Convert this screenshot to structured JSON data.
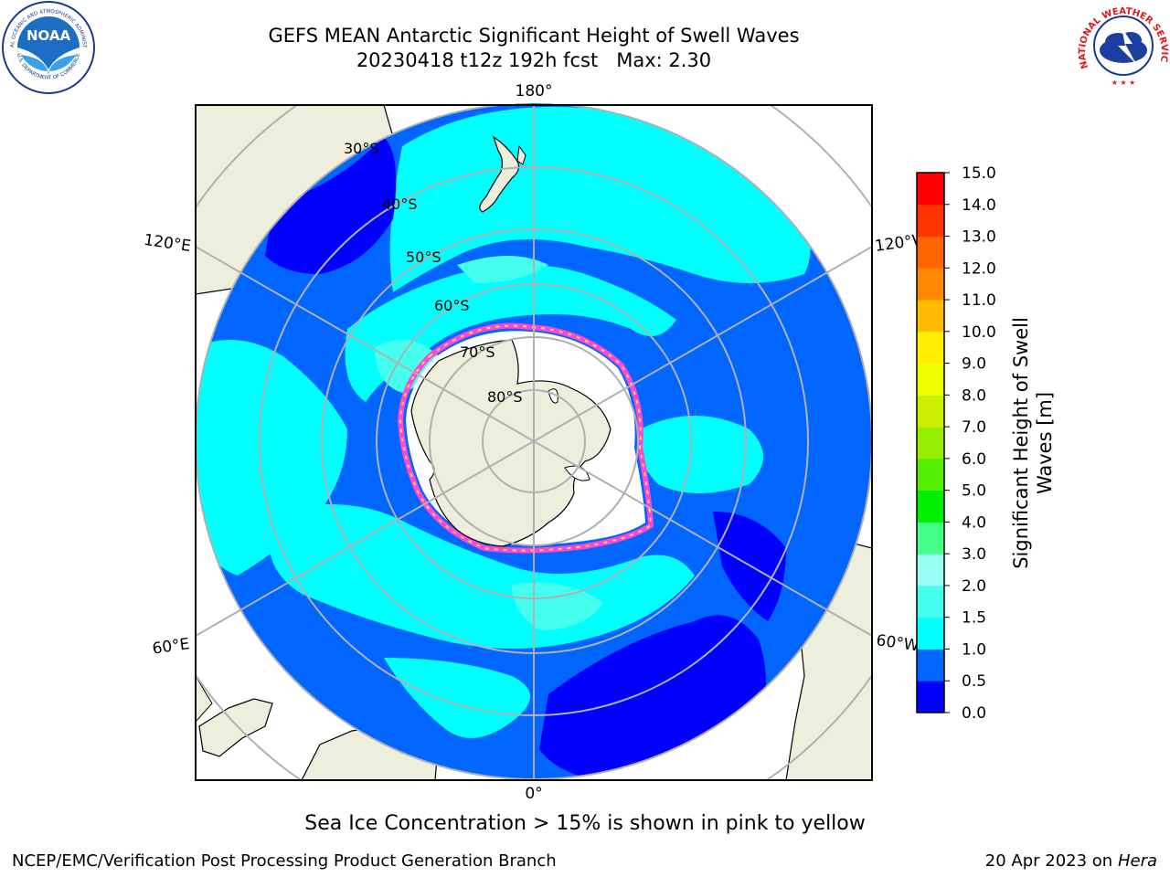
{
  "header": {
    "title_line1": "GEFS MEAN Antarctic Significant Height of Swell Waves",
    "title_line2": "20230418 t12z 192h fcst   Max: 2.30"
  },
  "logos": {
    "noaa_text": "NOAA",
    "noaa_ring_top": "NATIONAL OCEANIC AND ATMOSPHERIC ADMINISTRATION",
    "noaa_ring_bottom": "U.S. DEPARTMENT OF COMMERCE",
    "nws_ring": "NATIONAL WEATHER SERVICE"
  },
  "map": {
    "projection": "south-polar-stereographic",
    "longitude_labels": {
      "top": "180°",
      "bottom": "0°",
      "upper_left": "120°E",
      "upper_right": "120°W",
      "lower_left": "60°E",
      "lower_right": "60°W"
    },
    "latitude_labels": [
      "30°S",
      "40°S",
      "50°S",
      "60°S",
      "70°S",
      "80°S"
    ],
    "colors": {
      "land": "#eeeedc",
      "sea_ice": "#ffffff",
      "ice_edge_pink": "#ff44dd",
      "ice_edge_yellow": "#ffe030",
      "grid": "#b0b0b0"
    }
  },
  "colorbar": {
    "label_line1": "Significant Height of Swell",
    "label_line2": "Waves [m]",
    "ticks": [
      "0.0",
      "0.5",
      "1.0",
      "1.5",
      "2.0",
      "3.0",
      "4.0",
      "5.0",
      "6.0",
      "7.0",
      "8.0",
      "9.0",
      "10.0",
      "11.0",
      "12.0",
      "13.0",
      "14.0",
      "15.0"
    ],
    "colors": [
      "#0000ff",
      "#0066ff",
      "#00ffff",
      "#44ffee",
      "#99fff5",
      "#44ff88",
      "#00ee00",
      "#55ee00",
      "#99ee00",
      "#ccee00",
      "#eeff00",
      "#ffee00",
      "#ffbb00",
      "#ff8800",
      "#ff6600",
      "#ff3300",
      "#ff0000"
    ]
  },
  "footer": {
    "note": "Sea Ice Concentration > 15% is shown in pink to yellow",
    "left": "NCEP/EMC/Verification Post Processing Product Generation Branch",
    "right_date": "20 Apr 2023 on",
    "right_host": "Hera"
  }
}
